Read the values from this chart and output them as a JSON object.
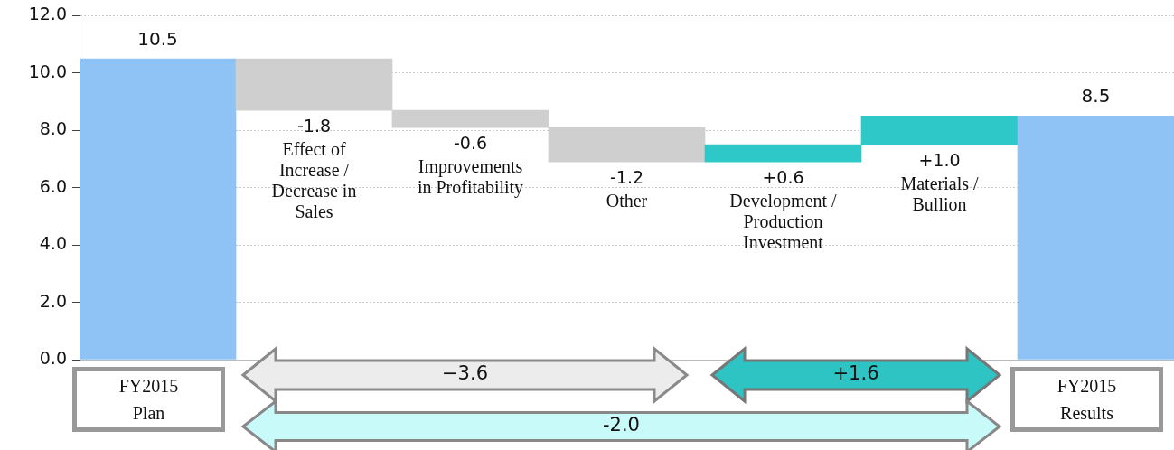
{
  "chart_data": {
    "type": "bar",
    "categories": [
      "FY2015 Plan",
      "Effect of Increase / Decrease in Sales",
      "Improvements in Profitability",
      "Other",
      "Development / Production Investment",
      "Materials / Bullion",
      "FY2015 Results"
    ],
    "values": [
      10.5,
      -1.8,
      -0.6,
      -1.2,
      0.6,
      1.0,
      8.5
    ],
    "base": [
      0,
      10.5,
      8.7,
      8.1,
      6.9,
      7.5,
      0
    ],
    "colors": [
      "#8fc3f5",
      "#cfcfcf",
      "#cfcfcf",
      "#cfcfcf",
      "#2ec8c8",
      "#2ec8c8",
      "#8fc3f5"
    ],
    "value_labels": [
      "10.5",
      "-1.8",
      "-0.6",
      "-1.2",
      "+0.6",
      "+1.0",
      "8.5"
    ],
    "ylim": [
      0,
      12
    ],
    "yticks": [
      {
        "value": 0,
        "label": "0.0"
      },
      {
        "value": 2,
        "label": "2.0"
      },
      {
        "value": 4,
        "label": "4.0"
      },
      {
        "value": 6,
        "label": "6.0"
      },
      {
        "value": 8,
        "label": "8.0"
      },
      {
        "value": 10,
        "label": "10.0"
      },
      {
        "value": 12,
        "label": "12.0"
      }
    ],
    "grid": "y",
    "annotations": [
      "−3.6",
      "+1.6",
      "-2.0"
    ]
  }
}
